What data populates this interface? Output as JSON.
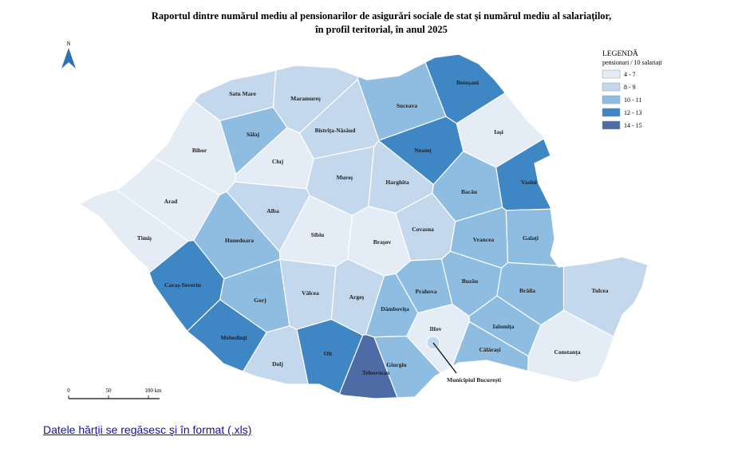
{
  "map": {
    "title": [
      "Raportul dintre numărul mediu al pensionarilor de asigurări sociale de stat şi numărul mediu al salariaţilor,",
      "în profil teritorial, în anul 2025"
    ],
    "north": "N",
    "legend": {
      "title": "LEGENDĂ",
      "subtitle": "pensionari / 10 salariați",
      "classes": [
        {
          "label": "4 - 7",
          "color": "#e4ecf6"
        },
        {
          "label": "8 - 9",
          "color": "#c3d8ec"
        },
        {
          "label": "10 - 11",
          "color": "#8fbde2"
        },
        {
          "label": "12 - 13",
          "color": "#3f86c4"
        },
        {
          "label": "14 - 15",
          "color": "#4d6ca6"
        }
      ]
    },
    "counties": [
      {
        "name": "Satu Mare",
        "class": "8 - 9"
      },
      {
        "name": "Maramureș",
        "class": "8 - 9"
      },
      {
        "name": "Botoșani",
        "class": "12 - 13"
      },
      {
        "name": "Suceava",
        "class": "10 - 11"
      },
      {
        "name": "Iași",
        "class": "4 - 7"
      },
      {
        "name": "Sălaj",
        "class": "10 - 11"
      },
      {
        "name": "Bistrița-Năsăud",
        "class": "8 - 9"
      },
      {
        "name": "Neamț",
        "class": "12 - 13"
      },
      {
        "name": "Bihor",
        "class": "4 - 7"
      },
      {
        "name": "Cluj",
        "class": "4 - 7"
      },
      {
        "name": "Vaslui",
        "class": "12 - 13"
      },
      {
        "name": "Mureș",
        "class": "8 - 9"
      },
      {
        "name": "Harghita",
        "class": "8 - 9"
      },
      {
        "name": "Bacău",
        "class": "10 - 11"
      },
      {
        "name": "Arad",
        "class": "4 - 7"
      },
      {
        "name": "Alba",
        "class": "8 - 9"
      },
      {
        "name": "Covasna",
        "class": "8 - 9"
      },
      {
        "name": "Sibiu",
        "class": "4 - 7"
      },
      {
        "name": "Brașov",
        "class": "4 - 7"
      },
      {
        "name": "Vrancea",
        "class": "10 - 11"
      },
      {
        "name": "Galați",
        "class": "10 - 11"
      },
      {
        "name": "Timiș",
        "class": "4 - 7"
      },
      {
        "name": "Hunedoara",
        "class": "10 - 11"
      },
      {
        "name": "Caraș-Severin",
        "class": "12 - 13"
      },
      {
        "name": "Gorj",
        "class": "10 - 11"
      },
      {
        "name": "Vâlcea",
        "class": "8 - 9"
      },
      {
        "name": "Argeș",
        "class": "8 - 9"
      },
      {
        "name": "Prahova",
        "class": "10 - 11"
      },
      {
        "name": "Buzău",
        "class": "10 - 11"
      },
      {
        "name": "Brăila",
        "class": "10 - 11"
      },
      {
        "name": "Tulcea",
        "class": "8 - 9"
      },
      {
        "name": "Dâmbovița",
        "class": "10 - 11"
      },
      {
        "name": "Mehedinți",
        "class": "12 - 13"
      },
      {
        "name": "Ilfov",
        "class": "4 - 7"
      },
      {
        "name": "Ialomița",
        "class": "10 - 11"
      },
      {
        "name": "Olt",
        "class": "12 - 13"
      },
      {
        "name": "Călărași",
        "class": "10 - 11"
      },
      {
        "name": "Constanța",
        "class": "4 - 7"
      },
      {
        "name": "Dolj",
        "class": "8 - 9"
      },
      {
        "name": "Teleorman",
        "class": "14 - 15"
      },
      {
        "name": "Giurgiu",
        "class": "10 - 11"
      }
    ],
    "capital": {
      "name": "Municipiul București",
      "class": "8 - 9"
    },
    "scale": [
      "0",
      "50",
      "100 km"
    ],
    "link": "Datele hărţii se regăsesc şi în format (.xls)"
  }
}
